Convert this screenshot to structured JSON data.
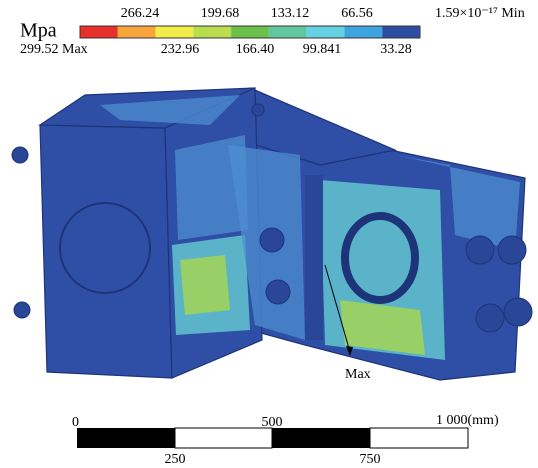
{
  "legend": {
    "unit": "Mpa",
    "colors": [
      "#e8302a",
      "#f7a43a",
      "#f1ee46",
      "#b9dd4e",
      "#6cc14a",
      "#5ec79f",
      "#67d1e4",
      "#3ea4de",
      "#2d4fa3"
    ],
    "top_labels": [
      "266.24",
      "199.68",
      "133.12",
      "66.56",
      "1.59×10⁻¹⁷ Min"
    ],
    "bottom_labels": [
      "299.52 Max",
      "232.96",
      "166.40",
      "99.841",
      "33.28"
    ]
  },
  "annotation": "Max",
  "scale_bar": {
    "top_labels": [
      "0",
      "500",
      "1 000(mm)"
    ],
    "bottom_labels": [
      "250",
      "750"
    ]
  }
}
